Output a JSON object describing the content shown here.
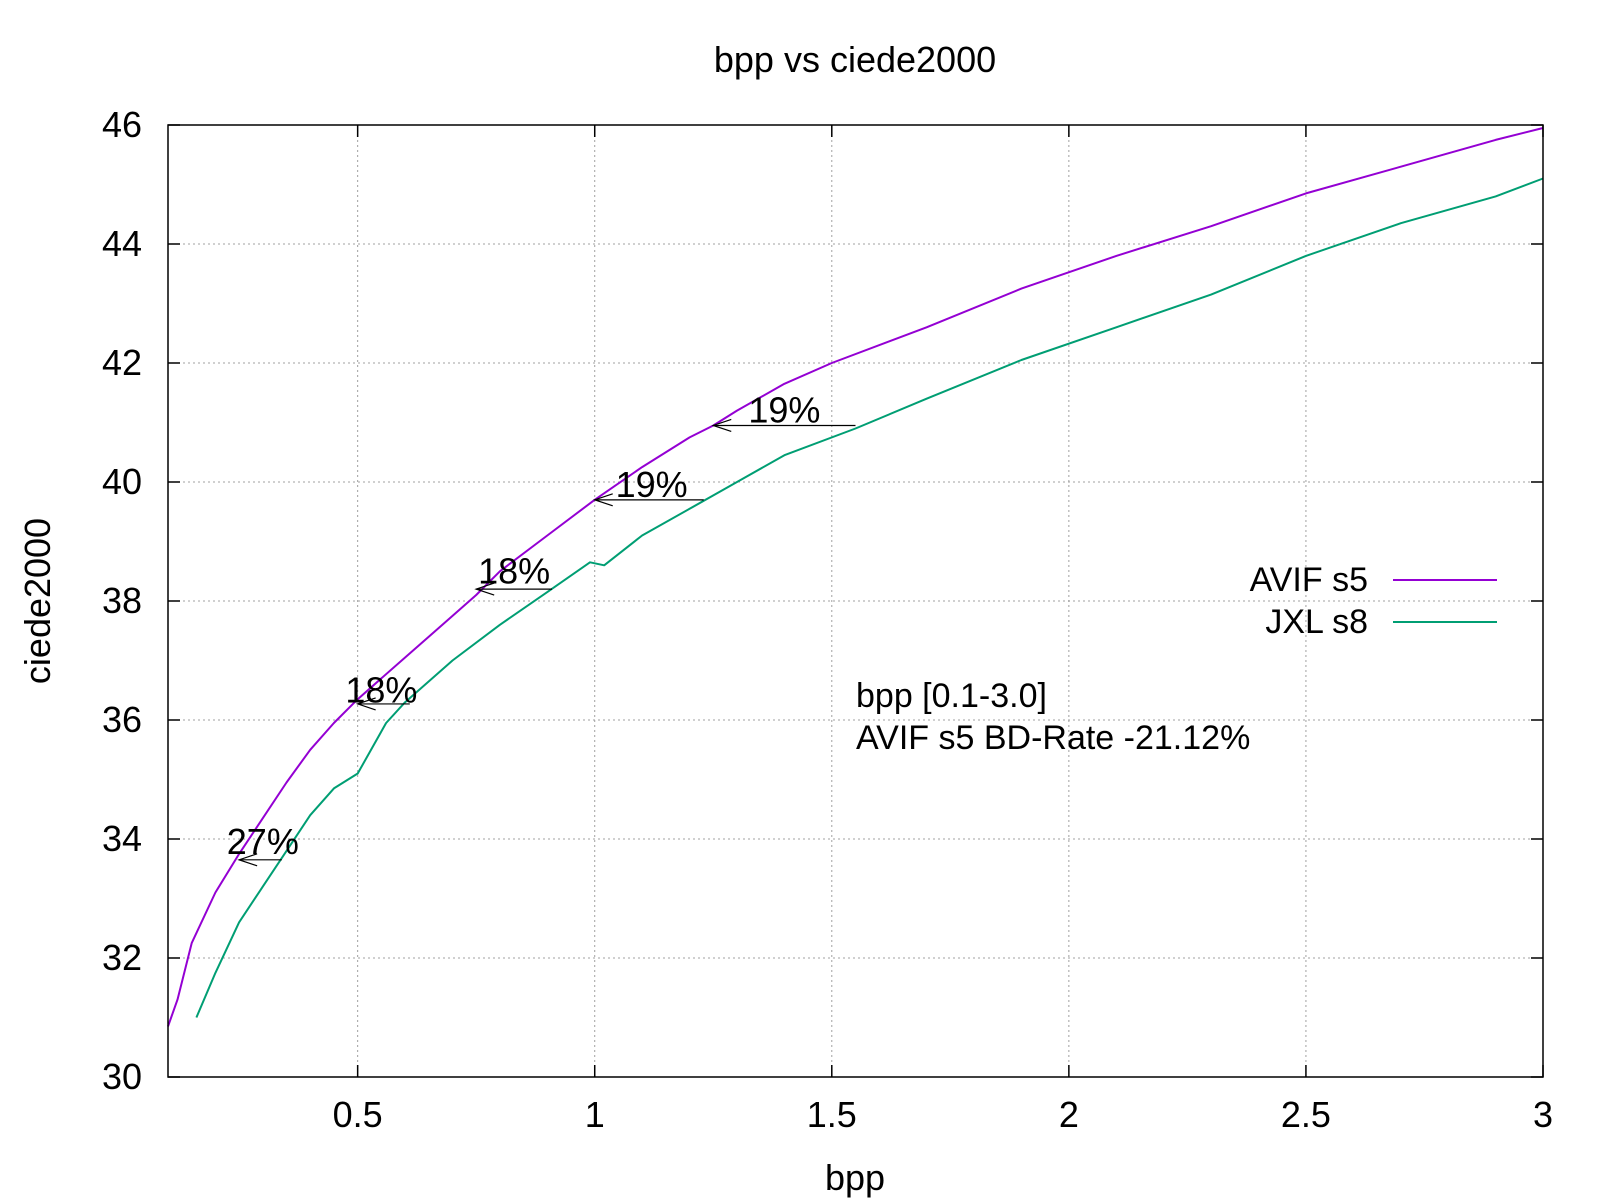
{
  "chart_data": {
    "type": "line",
    "title": "bpp vs ciede2000",
    "xlabel": "bpp",
    "ylabel": "ciede2000",
    "xlim": [
      0.1,
      3.0
    ],
    "ylim": [
      30,
      46
    ],
    "xticks": [
      0.5,
      1,
      1.5,
      2,
      2.5,
      3
    ],
    "xtick_labels": [
      "0.5",
      "1",
      "1.5",
      "2",
      "2.5",
      "3"
    ],
    "yticks": [
      30,
      32,
      34,
      36,
      38,
      40,
      42,
      44,
      46
    ],
    "ytick_labels": [
      "30",
      "32",
      "34",
      "36",
      "38",
      "40",
      "42",
      "44",
      "46"
    ],
    "grid": true,
    "legend_position": "right",
    "series": [
      {
        "name": "AVIF s5",
        "color": "#9400d3",
        "x": [
          0.1,
          0.12,
          0.15,
          0.2,
          0.25,
          0.3,
          0.35,
          0.4,
          0.45,
          0.5,
          0.55,
          0.6,
          0.7,
          0.75,
          0.8,
          0.9,
          1.0,
          1.1,
          1.2,
          1.25,
          1.3,
          1.4,
          1.5,
          1.7,
          1.9,
          2.1,
          2.3,
          2.5,
          2.7,
          2.9,
          3.0
        ],
        "values": [
          30.85,
          31.3,
          32.25,
          33.1,
          33.75,
          34.35,
          34.95,
          35.5,
          35.95,
          36.35,
          36.7,
          37.05,
          37.75,
          38.1,
          38.5,
          39.1,
          39.7,
          40.25,
          40.75,
          40.95,
          41.2,
          41.65,
          42.0,
          42.6,
          43.25,
          43.8,
          44.3,
          44.85,
          45.3,
          45.75,
          45.95
        ]
      },
      {
        "name": "JXL s8",
        "color": "#009e73",
        "x": [
          0.16,
          0.2,
          0.25,
          0.3,
          0.35,
          0.4,
          0.45,
          0.5,
          0.56,
          0.6,
          0.7,
          0.8,
          0.9,
          0.99,
          1.02,
          1.1,
          1.2,
          1.3,
          1.4,
          1.55,
          1.7,
          1.9,
          2.1,
          2.3,
          2.5,
          2.7,
          2.9,
          3.0
        ],
        "values": [
          31.0,
          31.75,
          32.6,
          33.2,
          33.8,
          34.4,
          34.85,
          35.1,
          35.95,
          36.3,
          37.0,
          37.6,
          38.15,
          38.65,
          38.6,
          39.1,
          39.55,
          40.0,
          40.45,
          40.9,
          41.4,
          42.05,
          42.6,
          43.15,
          43.8,
          44.35,
          44.8,
          45.1
        ]
      }
    ],
    "annotations": [
      {
        "text": "27%",
        "x": 0.3,
        "y": 33.95,
        "arrow_from": [
          0.34,
          33.65
        ],
        "arrow_to": [
          0.25,
          33.65
        ]
      },
      {
        "text": "18%",
        "x": 0.55,
        "y": 36.5,
        "arrow_from": [
          0.61,
          36.27
        ],
        "arrow_to": [
          0.5,
          36.27
        ]
      },
      {
        "text": "18%",
        "x": 0.83,
        "y": 38.5,
        "arrow_from": [
          0.91,
          38.2
        ],
        "arrow_to": [
          0.75,
          38.2
        ]
      },
      {
        "text": "19%",
        "x": 1.12,
        "y": 39.95,
        "arrow_from": [
          1.23,
          39.7
        ],
        "arrow_to": [
          1.0,
          39.7
        ]
      },
      {
        "text": "19%",
        "x": 1.4,
        "y": 41.2,
        "arrow_from": [
          1.55,
          40.95
        ],
        "arrow_to": [
          1.25,
          40.95
        ]
      }
    ],
    "note_color": "#00ee00",
    "notes": [
      "bpp [0.1-3.0]",
      "AVIF s5 BD-Rate -21.12%"
    ]
  }
}
